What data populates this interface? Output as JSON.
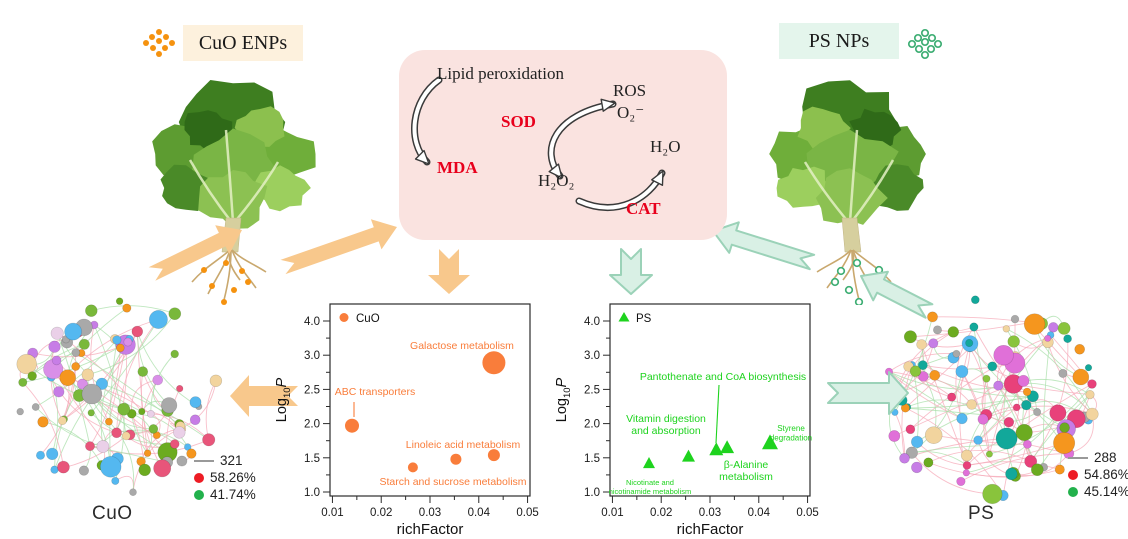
{
  "badges": {
    "cuo": "CuO ENPs",
    "ps": "PS NPs"
  },
  "pathway": {
    "lipid_peroxidation": "Lipid peroxidation",
    "mda": "MDA",
    "sod": "SOD",
    "ros": "ROS",
    "superoxide": "O₂⁻",
    "h2o2": "H₂O₂",
    "h2o": "H₂O",
    "cat": "CAT"
  },
  "networks": {
    "left": {
      "title": "CuO",
      "legend": {
        "edges": "321",
        "red_pct": "58.26%",
        "green_pct": "41.74%"
      }
    },
    "right": {
      "title": "PS",
      "legend": {
        "edges": "288",
        "red_pct": "54.86%",
        "green_pct": "45.14%"
      }
    }
  },
  "colors": {
    "cuo_series": "#f97d3b",
    "ps_series": "#1ed31e",
    "orange_arrow": "#f8c88c",
    "green_arrow_fill": "#d9f0e5",
    "green_arrow_stroke": "#9bd2b8",
    "legend_red": "#ed1c24",
    "legend_green": "#22b14c"
  },
  "chart_data": [
    {
      "type": "scatter",
      "series": [
        {
          "name": "CuO",
          "marker": "circle",
          "color": "#f97d3b",
          "points": [
            {
              "label": "ABC transporters",
              "richFactor": 0.014,
              "log10P": 1.97,
              "size": 7
            },
            {
              "label": "Galactose metabolism",
              "richFactor": 0.0431,
              "log10P": 2.89,
              "size": 11.5
            },
            {
              "label": "Starch and sucrose metabolism",
              "richFactor": 0.0265,
              "log10P": 1.36,
              "size": 5
            },
            {
              "label": "",
              "richFactor": 0.0353,
              "log10P": 1.48,
              "size": 5.5
            },
            {
              "label": "Linoleic acid metabolism",
              "richFactor": 0.0431,
              "log10P": 1.54,
              "size": 6
            }
          ]
        }
      ],
      "xlabel": "richFactor",
      "ylabel": "Log10P",
      "x_ticks": [
        "0.01",
        "0.02",
        "0.03",
        "0.04",
        "0.05"
      ],
      "y_ticks": [
        "4.0",
        "3.0",
        "2.5",
        "2.0",
        "1.5",
        "1.0"
      ],
      "x_range": [
        0.0095,
        0.0505
      ],
      "grid": false,
      "legend_position": "top-left"
    },
    {
      "type": "scatter",
      "series": [
        {
          "name": "PS",
          "marker": "triangle",
          "color": "#1ed31e",
          "points": [
            {
              "label": "Nicotinate and\nnicotinamide metabolism",
              "richFactor": 0.0175,
              "log10P": 1.42,
              "size": 6
            },
            {
              "label": "Vitamin digestion\nand absorption",
              "richFactor": 0.0256,
              "log10P": 1.52,
              "size": 6.5
            },
            {
              "label": "Pantothenate and CoA biosynthesis",
              "richFactor": 0.0313,
              "log10P": 1.62,
              "size": 7
            },
            {
              "label": "β-Alanine\nmetabolism",
              "richFactor": 0.0335,
              "log10P": 1.65,
              "size": 7
            },
            {
              "label": "Styrene\ndegradation",
              "richFactor": 0.0423,
              "log10P": 1.72,
              "size": 8
            }
          ]
        }
      ],
      "xlabel": "richFactor",
      "ylabel": "Log10P",
      "x_ticks": [
        "0.01",
        "0.02",
        "0.03",
        "0.04",
        "0.05"
      ],
      "y_ticks": [
        "4.0",
        "3.0",
        "2.5",
        "2.0",
        "1.5",
        "1.0"
      ],
      "x_range": [
        0.0095,
        0.0505
      ],
      "grid": false,
      "legend_position": "top-left"
    }
  ]
}
